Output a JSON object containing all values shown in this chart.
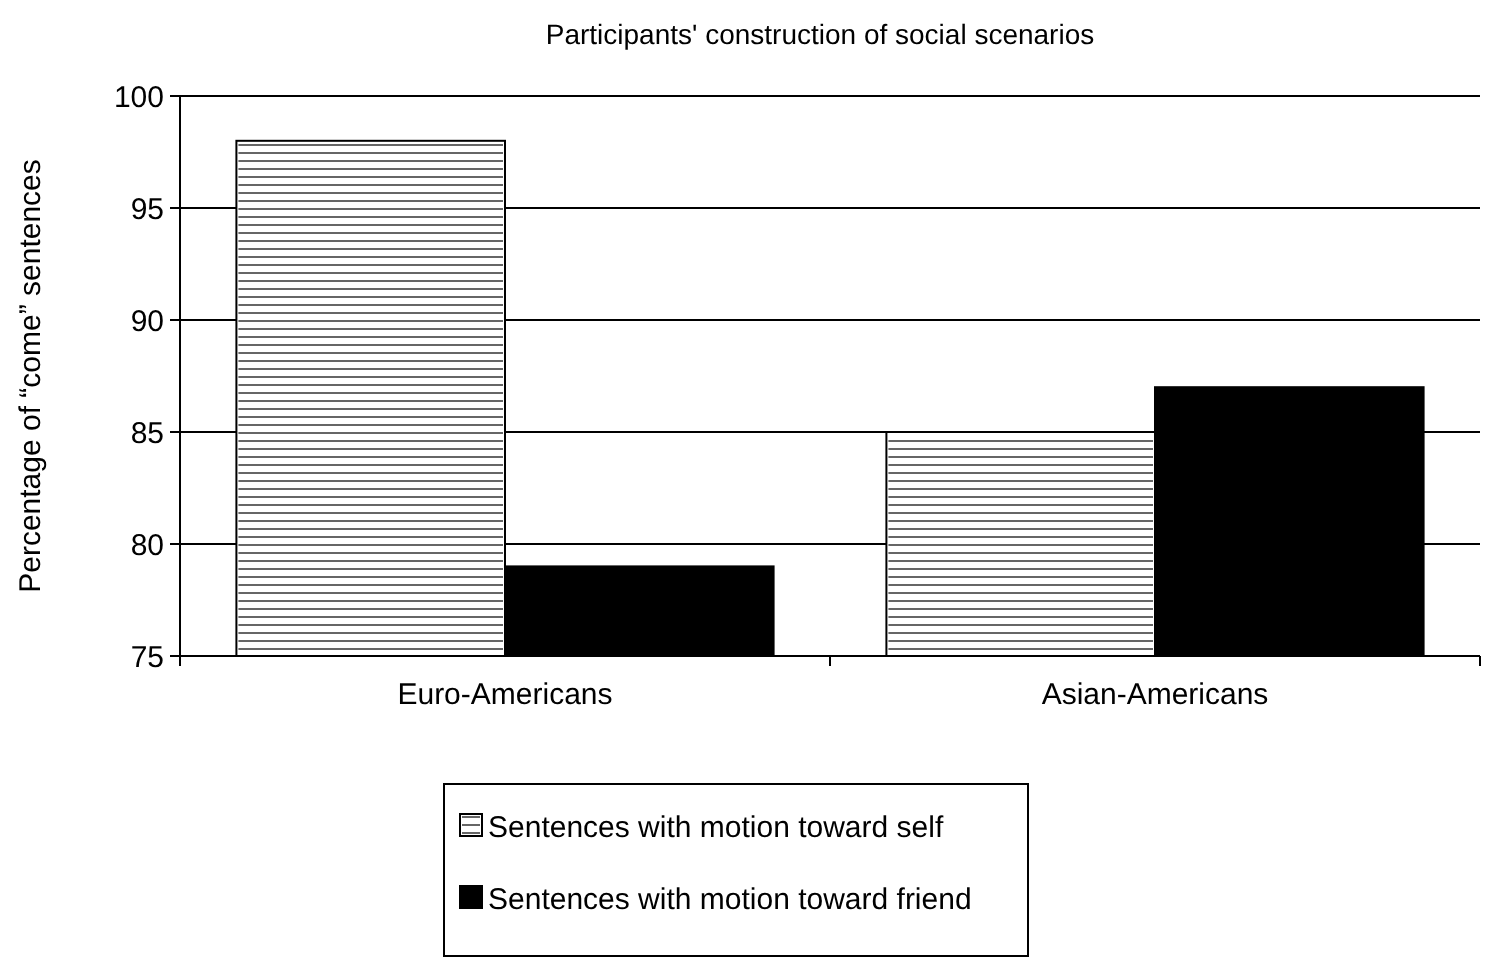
{
  "chart_data": {
    "type": "bar",
    "title": "Participants' construction of social scenarios",
    "ylabel": "Percentage of “come” sentences",
    "categories": [
      "Euro-Americans",
      "Asian-Americans"
    ],
    "series": [
      {
        "name": "Sentences with motion toward self",
        "color": "#ffffff",
        "values": [
          98,
          85
        ]
      },
      {
        "name": "Sentences with motion toward friend",
        "color": "#000000",
        "values": [
          79,
          87
        ]
      }
    ],
    "ylim": [
      75,
      100
    ],
    "yticks": [
      75,
      80,
      85,
      90,
      95,
      100
    ],
    "grid": "y",
    "legend": "bottom"
  }
}
